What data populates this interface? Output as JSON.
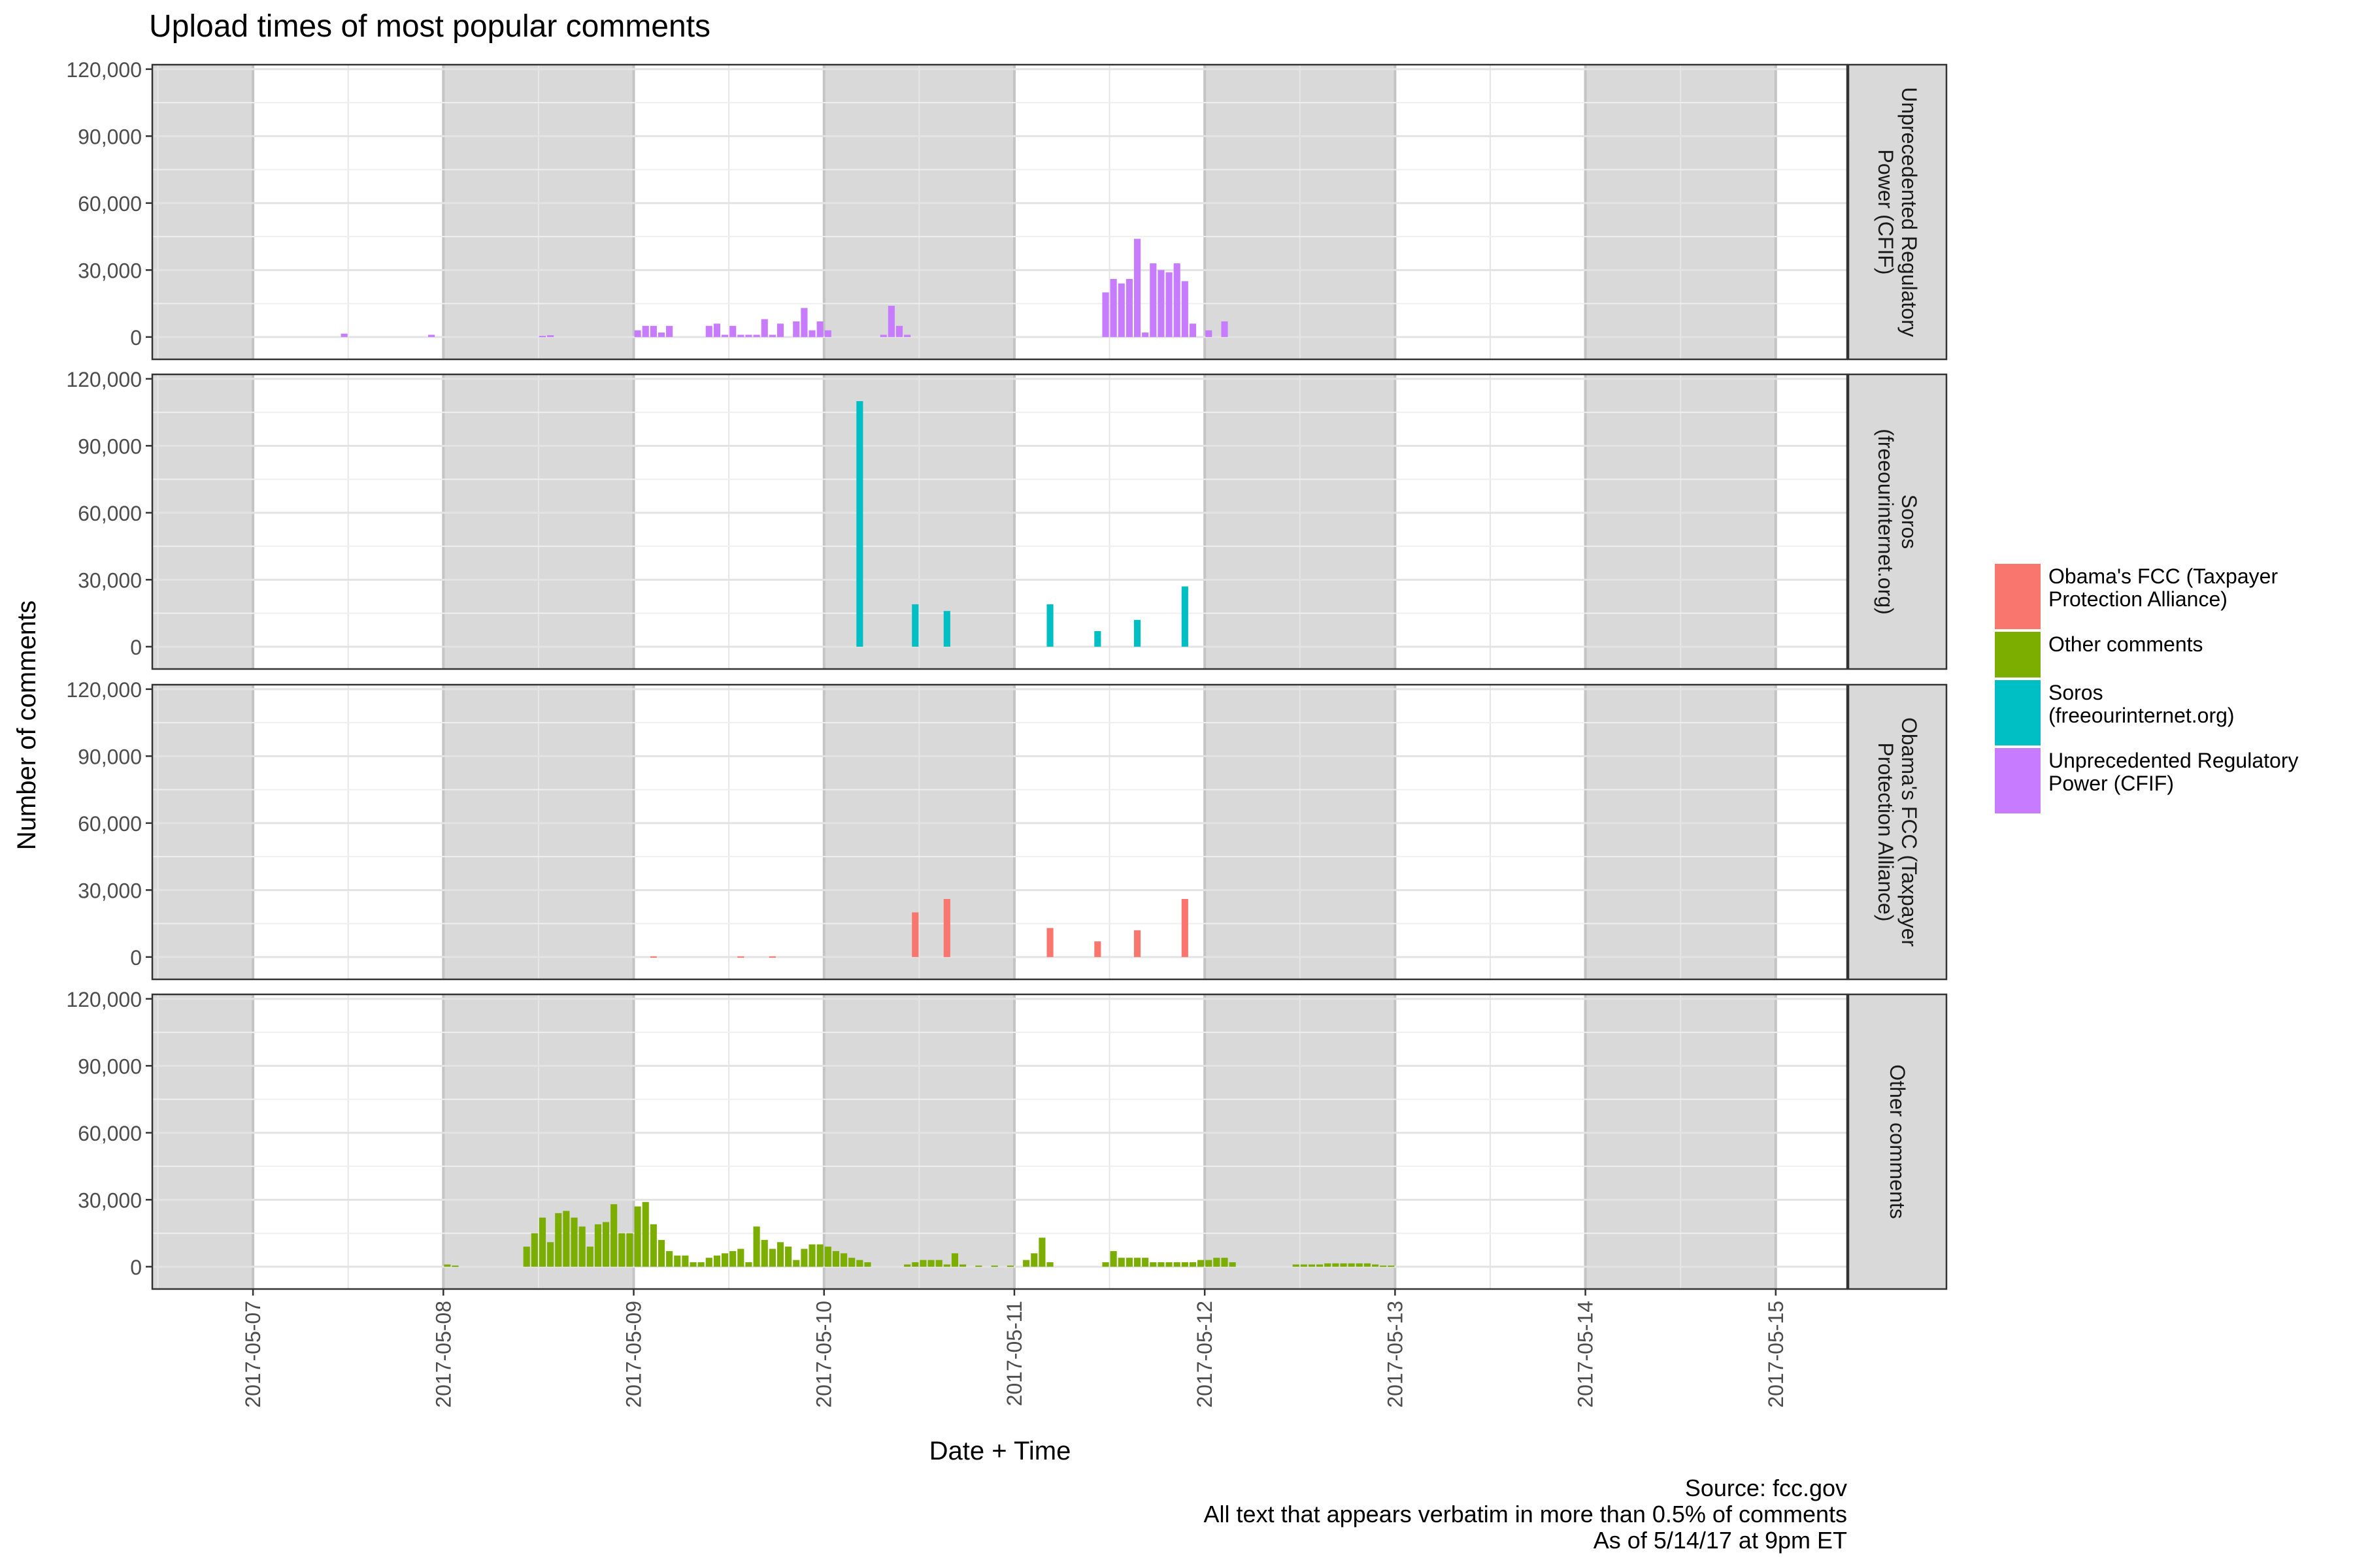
{
  "chart_data": {
    "type": "bar",
    "title": "Upload times of most popular comments",
    "xlabel": "Date + Time",
    "ylabel": "Number of comments",
    "x_tick_labels": [
      "2017-05-07",
      "2017-05-08",
      "2017-05-09",
      "2017-05-10",
      "2017-05-11",
      "2017-05-12",
      "2017-05-13",
      "2017-05-14",
      "2017-05-15"
    ],
    "y_tick_labels": [
      "0",
      "30,000",
      "60,000",
      "90,000",
      "120,000"
    ],
    "y_ticks": [
      0,
      30000,
      60000,
      90000,
      120000
    ],
    "ylim": [
      -10000,
      122000
    ],
    "x_domain_hours": [
      -12.7,
      201
    ],
    "night_shading_ranges_hours": [
      [
        -12.7,
        0
      ],
      [
        24,
        48
      ],
      [
        72,
        96
      ],
      [
        120,
        144
      ],
      [
        168,
        192
      ]
    ],
    "grid": true,
    "legend_position": "right",
    "legend": [
      {
        "label_lines": [
          "Obama's FCC (Taxpayer",
          "Protection Alliance)"
        ],
        "color": "#F8766D"
      },
      {
        "label_lines": [
          "Other comments"
        ],
        "color": "#7CAE00"
      },
      {
        "label_lines": [
          "Soros",
          "(freeourinternet.org)"
        ],
        "color": "#00BFC4"
      },
      {
        "label_lines": [
          "Unprecedented Regulatory",
          "Power (CFIF)"
        ],
        "color": "#C77CFF"
      }
    ],
    "caption_lines": [
      "Source: fcc.gov",
      "All text that appears verbatim in more than 0.5% of comments",
      "As of 5/14/17 at 9pm ET"
    ],
    "facets": [
      {
        "strip_lines": [
          "Unprecedented Regulatory",
          "Power (CFIF)"
        ],
        "color": "#C77CFF",
        "bar_width_hours": 1,
        "points": [
          {
            "hour": 11.5,
            "value": 1500
          },
          {
            "hour": 22.5,
            "value": 1000
          },
          {
            "hour": 36.5,
            "value": 500
          },
          {
            "hour": 37.5,
            "value": 800
          },
          {
            "hour": 48.5,
            "value": 3000
          },
          {
            "hour": 49.5,
            "value": 5000
          },
          {
            "hour": 50.5,
            "value": 5000
          },
          {
            "hour": 51.5,
            "value": 2000
          },
          {
            "hour": 52.5,
            "value": 5000
          },
          {
            "hour": 57.5,
            "value": 5000
          },
          {
            "hour": 58.5,
            "value": 6000
          },
          {
            "hour": 59.5,
            "value": 1000
          },
          {
            "hour": 60.5,
            "value": 5000
          },
          {
            "hour": 61.5,
            "value": 1000
          },
          {
            "hour": 62.5,
            "value": 1000
          },
          {
            "hour": 63.5,
            "value": 1000
          },
          {
            "hour": 64.5,
            "value": 8000
          },
          {
            "hour": 65.5,
            "value": 1000
          },
          {
            "hour": 66.5,
            "value": 6000
          },
          {
            "hour": 68.5,
            "value": 7000
          },
          {
            "hour": 69.5,
            "value": 13000
          },
          {
            "hour": 70.5,
            "value": 3000
          },
          {
            "hour": 71.5,
            "value": 7000
          },
          {
            "hour": 72.5,
            "value": 3000
          },
          {
            "hour": 79.5,
            "value": 1000
          },
          {
            "hour": 80.5,
            "value": 14000
          },
          {
            "hour": 81.5,
            "value": 5000
          },
          {
            "hour": 82.5,
            "value": 1000
          },
          {
            "hour": 107.5,
            "value": 20000
          },
          {
            "hour": 108.5,
            "value": 26000
          },
          {
            "hour": 109.5,
            "value": 24000
          },
          {
            "hour": 110.5,
            "value": 26000
          },
          {
            "hour": 111.5,
            "value": 44000
          },
          {
            "hour": 112.5,
            "value": 2000
          },
          {
            "hour": 113.5,
            "value": 33000
          },
          {
            "hour": 114.5,
            "value": 30000
          },
          {
            "hour": 115.5,
            "value": 29000
          },
          {
            "hour": 116.5,
            "value": 33000
          },
          {
            "hour": 117.5,
            "value": 25000
          },
          {
            "hour": 118.5,
            "value": 6000
          },
          {
            "hour": 120.5,
            "value": 3000
          },
          {
            "hour": 122.5,
            "value": 7000
          }
        ]
      },
      {
        "strip_lines": [
          "Soros",
          "(freeourinternet.org)"
        ],
        "color": "#00BFC4",
        "bar_width_hours": 1,
        "points": [
          {
            "hour": 76.5,
            "value": 110000
          },
          {
            "hour": 83.5,
            "value": 19000
          },
          {
            "hour": 87.5,
            "value": 16000
          },
          {
            "hour": 100.5,
            "value": 19000
          },
          {
            "hour": 106.5,
            "value": 7000
          },
          {
            "hour": 111.5,
            "value": 12000
          },
          {
            "hour": 117.5,
            "value": 27000
          }
        ]
      },
      {
        "strip_lines": [
          "Obama's FCC (Taxpayer",
          "Protection Alliance)"
        ],
        "color": "#F8766D",
        "bar_width_hours": 1,
        "points": [
          {
            "hour": 50.5,
            "value": 300
          },
          {
            "hour": 61.5,
            "value": 300
          },
          {
            "hour": 65.5,
            "value": 300
          },
          {
            "hour": 83.5,
            "value": 20000
          },
          {
            "hour": 87.5,
            "value": 26000
          },
          {
            "hour": 100.5,
            "value": 13000
          },
          {
            "hour": 106.5,
            "value": 7000
          },
          {
            "hour": 111.5,
            "value": 12000
          },
          {
            "hour": 117.5,
            "value": 26000
          }
        ]
      },
      {
        "strip_lines": [
          "Other comments"
        ],
        "color": "#7CAE00",
        "bar_width_hours": 1,
        "points": [
          {
            "hour": 24.5,
            "value": 1000
          },
          {
            "hour": 25.5,
            "value": 500
          },
          {
            "hour": 34.5,
            "value": 9000
          },
          {
            "hour": 35.5,
            "value": 15000
          },
          {
            "hour": 36.5,
            "value": 22000
          },
          {
            "hour": 37.5,
            "value": 11000
          },
          {
            "hour": 38.5,
            "value": 24000
          },
          {
            "hour": 39.5,
            "value": 25000
          },
          {
            "hour": 40.5,
            "value": 22000
          },
          {
            "hour": 41.5,
            "value": 18000
          },
          {
            "hour": 42.5,
            "value": 9000
          },
          {
            "hour": 43.5,
            "value": 19000
          },
          {
            "hour": 44.5,
            "value": 20000
          },
          {
            "hour": 45.5,
            "value": 28000
          },
          {
            "hour": 46.5,
            "value": 15000
          },
          {
            "hour": 47.5,
            "value": 15000
          },
          {
            "hour": 48.5,
            "value": 27000
          },
          {
            "hour": 49.5,
            "value": 29000
          },
          {
            "hour": 50.5,
            "value": 19000
          },
          {
            "hour": 51.5,
            "value": 12000
          },
          {
            "hour": 52.5,
            "value": 7000
          },
          {
            "hour": 53.5,
            "value": 5000
          },
          {
            "hour": 54.5,
            "value": 5000
          },
          {
            "hour": 55.5,
            "value": 2000
          },
          {
            "hour": 56.5,
            "value": 2000
          },
          {
            "hour": 57.5,
            "value": 4000
          },
          {
            "hour": 58.5,
            "value": 5000
          },
          {
            "hour": 59.5,
            "value": 6000
          },
          {
            "hour": 60.5,
            "value": 7000
          },
          {
            "hour": 61.5,
            "value": 8000
          },
          {
            "hour": 62.5,
            "value": 2000
          },
          {
            "hour": 63.5,
            "value": 18000
          },
          {
            "hour": 64.5,
            "value": 12000
          },
          {
            "hour": 65.5,
            "value": 8000
          },
          {
            "hour": 66.5,
            "value": 11000
          },
          {
            "hour": 67.5,
            "value": 9000
          },
          {
            "hour": 68.5,
            "value": 3000
          },
          {
            "hour": 69.5,
            "value": 8000
          },
          {
            "hour": 70.5,
            "value": 10000
          },
          {
            "hour": 71.5,
            "value": 10000
          },
          {
            "hour": 72.5,
            "value": 9000
          },
          {
            "hour": 73.5,
            "value": 7000
          },
          {
            "hour": 74.5,
            "value": 6000
          },
          {
            "hour": 75.5,
            "value": 4000
          },
          {
            "hour": 76.5,
            "value": 3000
          },
          {
            "hour": 77.5,
            "value": 2000
          },
          {
            "hour": 82.5,
            "value": 1000
          },
          {
            "hour": 83.5,
            "value": 2000
          },
          {
            "hour": 84.5,
            "value": 3000
          },
          {
            "hour": 85.5,
            "value": 3000
          },
          {
            "hour": 86.5,
            "value": 3000
          },
          {
            "hour": 87.5,
            "value": 1000
          },
          {
            "hour": 88.5,
            "value": 6000
          },
          {
            "hour": 89.5,
            "value": 1000
          },
          {
            "hour": 91.5,
            "value": 500
          },
          {
            "hour": 93.5,
            "value": 500
          },
          {
            "hour": 95.5,
            "value": 500
          },
          {
            "hour": 97.5,
            "value": 3000
          },
          {
            "hour": 98.5,
            "value": 6000
          },
          {
            "hour": 99.5,
            "value": 13000
          },
          {
            "hour": 100.5,
            "value": 2000
          },
          {
            "hour": 107.5,
            "value": 2000
          },
          {
            "hour": 108.5,
            "value": 7000
          },
          {
            "hour": 109.5,
            "value": 4000
          },
          {
            "hour": 110.5,
            "value": 4000
          },
          {
            "hour": 111.5,
            "value": 4000
          },
          {
            "hour": 112.5,
            "value": 4000
          },
          {
            "hour": 113.5,
            "value": 2000
          },
          {
            "hour": 114.5,
            "value": 2000
          },
          {
            "hour": 115.5,
            "value": 2000
          },
          {
            "hour": 116.5,
            "value": 2000
          },
          {
            "hour": 117.5,
            "value": 2000
          },
          {
            "hour": 118.5,
            "value": 2000
          },
          {
            "hour": 119.5,
            "value": 3000
          },
          {
            "hour": 120.5,
            "value": 3000
          },
          {
            "hour": 121.5,
            "value": 4000
          },
          {
            "hour": 122.5,
            "value": 4000
          },
          {
            "hour": 123.5,
            "value": 2000
          },
          {
            "hour": 131.5,
            "value": 1000
          },
          {
            "hour": 132.5,
            "value": 1000
          },
          {
            "hour": 133.5,
            "value": 1000
          },
          {
            "hour": 134.5,
            "value": 1000
          },
          {
            "hour": 135.5,
            "value": 1500
          },
          {
            "hour": 136.5,
            "value": 1500
          },
          {
            "hour": 137.5,
            "value": 1500
          },
          {
            "hour": 138.5,
            "value": 1500
          },
          {
            "hour": 139.5,
            "value": 1500
          },
          {
            "hour": 140.5,
            "value": 1500
          },
          {
            "hour": 141.5,
            "value": 1000
          },
          {
            "hour": 142.5,
            "value": 500
          },
          {
            "hour": 143.5,
            "value": 500
          }
        ]
      }
    ]
  }
}
